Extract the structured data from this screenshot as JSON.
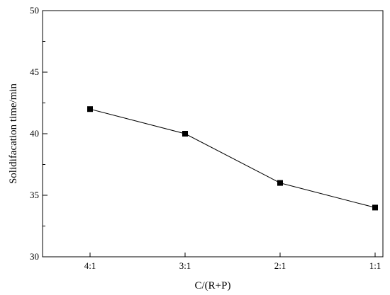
{
  "chart_data": {
    "type": "line",
    "categories": [
      "4:1",
      "3:1",
      "2:1",
      "1:1"
    ],
    "series": [
      {
        "values": [
          42,
          40,
          36,
          34
        ],
        "marker": "square"
      }
    ],
    "xlabel": "C/(R+P)",
    "ylabel": "Solidifacation time/min",
    "ylim": [
      30,
      50
    ],
    "yticks": [
      30,
      35,
      40,
      45,
      50
    ],
    "grid": false,
    "legend": "none"
  }
}
